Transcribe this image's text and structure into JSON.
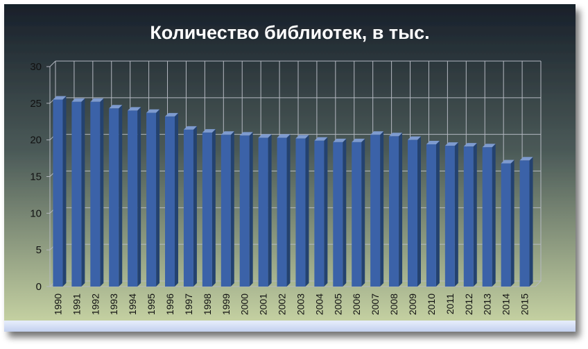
{
  "chart_data": {
    "type": "bar",
    "title": "Количество библиотек, в тыс.",
    "xlabel": "",
    "ylabel": "",
    "ylim": [
      0,
      30
    ],
    "yticks": [
      0,
      5,
      10,
      15,
      20,
      25,
      30
    ],
    "grid": true,
    "legend": "none",
    "categories": [
      "1990",
      "1991",
      "1992",
      "1993",
      "1994",
      "1995",
      "1996",
      "1997",
      "1998",
      "1999",
      "2000",
      "2001",
      "2002",
      "2003",
      "2004",
      "2005",
      "2006",
      "2007",
      "2008",
      "2009",
      "2010",
      "2011",
      "2012",
      "2013",
      "2014",
      "2015"
    ],
    "values": [
      25.5,
      25.2,
      25.2,
      24.3,
      24.0,
      23.7,
      23.2,
      21.4,
      21.0,
      20.7,
      20.6,
      20.3,
      20.3,
      20.2,
      19.9,
      19.7,
      19.7,
      20.7,
      20.5,
      20.0,
      19.4,
      19.2,
      19.1,
      19.0,
      16.8,
      17.2
    ],
    "colors": {
      "bar_front": "#3b62a8",
      "bar_side": "#24426f",
      "bar_top": "#7e9bcf",
      "grid": "#b5b9c2",
      "text": "#111111",
      "title": "#ffffff",
      "bg_top": "#18202a",
      "bg_bottom": "#ccd8a6"
    }
  }
}
